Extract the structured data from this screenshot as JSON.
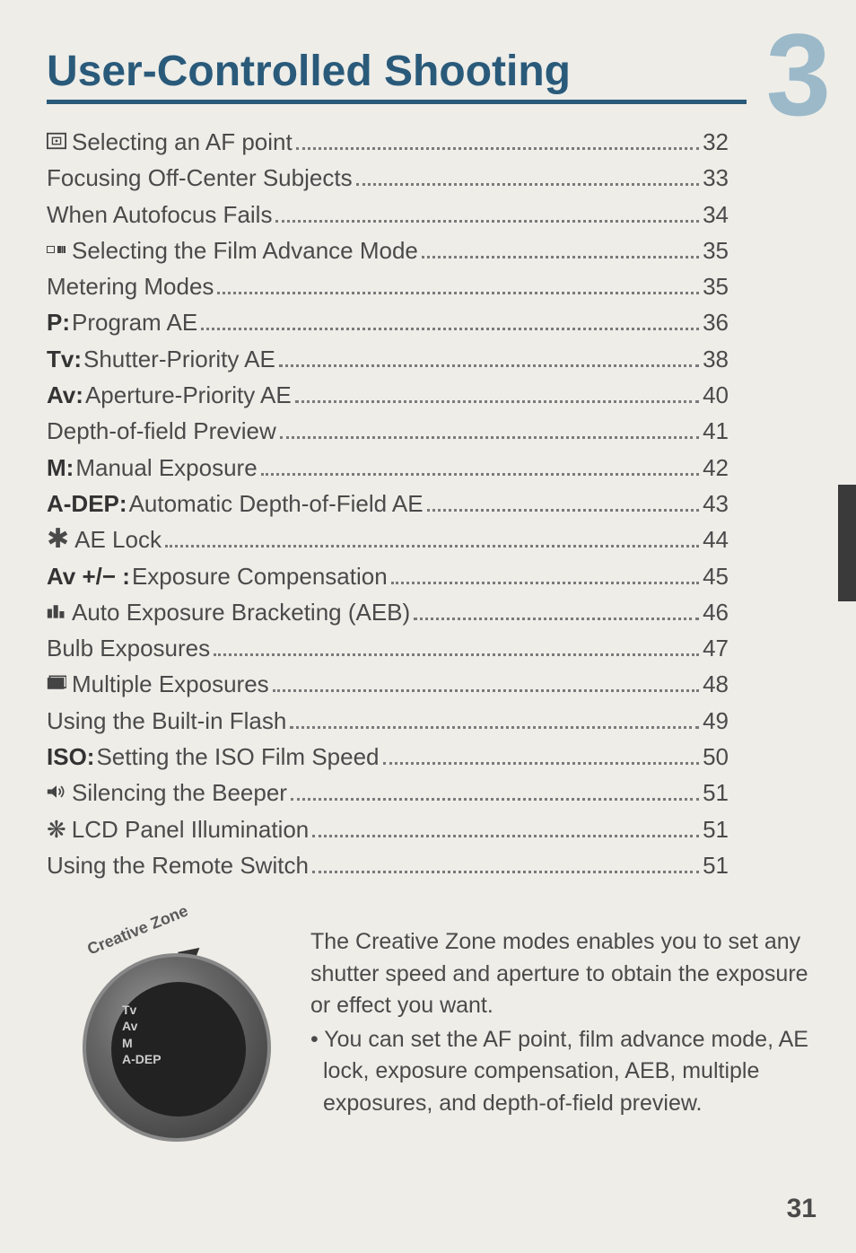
{
  "chapter_number": "3",
  "title": "User-Controlled Shooting",
  "page_number": "31",
  "side_tab_color": "#3a3a3a",
  "title_color": "#2a5a7a",
  "toc": [
    {
      "icon": "af-point-icon",
      "prefix": "",
      "label": "Selecting an AF point",
      "page": "32"
    },
    {
      "icon": "",
      "prefix": "",
      "label": "Focusing Off-Center Subjects",
      "page": "33"
    },
    {
      "icon": "",
      "prefix": "",
      "label": "When Autofocus Fails",
      "page": "34"
    },
    {
      "icon": "film-advance-icon",
      "prefix": "",
      "label": "Selecting the Film Advance Mode",
      "page": "35"
    },
    {
      "icon": "",
      "prefix": "",
      "label": "Metering Modes",
      "page": "35"
    },
    {
      "icon": "",
      "prefix": "P:",
      "label": "Program AE",
      "page": "36"
    },
    {
      "icon": "",
      "prefix": "Tv:",
      "label": "Shutter-Priority AE",
      "page": "38"
    },
    {
      "icon": "",
      "prefix": "Av:",
      "label": "Aperture-Priority AE",
      "page": "40"
    },
    {
      "icon": "",
      "prefix": "",
      "label": "Depth-of-field Preview",
      "page": "41"
    },
    {
      "icon": "",
      "prefix": "M:",
      "label": "Manual Exposure",
      "page": "42"
    },
    {
      "icon": "",
      "prefix": "A-DEP:",
      "label": "Automatic Depth-of-Field AE",
      "page": "43"
    },
    {
      "icon": "star-icon",
      "prefix": "",
      "label": "AE Lock",
      "page": "44"
    },
    {
      "icon": "",
      "prefix": "Av +/− :",
      "label": "Exposure Compensation",
      "page": "45"
    },
    {
      "icon": "aeb-icon",
      "prefix": "",
      "label": "Auto Exposure Bracketing (AEB)",
      "page": "46"
    },
    {
      "icon": "",
      "prefix": "",
      "label": "Bulb Exposures",
      "page": "47"
    },
    {
      "icon": "multi-exposure-icon",
      "prefix": "",
      "label": "Multiple Exposures",
      "page": "48"
    },
    {
      "icon": "",
      "prefix": "",
      "label": "Using the Built-in Flash",
      "page": "49"
    },
    {
      "icon": "",
      "prefix": "ISO:",
      "label": "Setting the ISO Film Speed",
      "page": "50"
    },
    {
      "icon": "beeper-icon",
      "prefix": "",
      "label": "Silencing the Beeper",
      "page": "51"
    },
    {
      "icon": "illumination-icon",
      "prefix": "",
      "label": "LCD Panel Illumination",
      "page": "51"
    },
    {
      "icon": "",
      "prefix": "",
      "label": "Using the Remote Switch",
      "page": "51"
    }
  ],
  "dial": {
    "zone_label": "Creative Zone",
    "marks": "Tv\nAv\nM\nA-DEP"
  },
  "intro": {
    "p1": "The Creative Zone modes enables you to set any shutter speed and aperture to obtain the exposure or effect you want.",
    "p2": "• You can set the AF point, film advance mode, AE lock, exposure compensation, AEB, multiple exposures, and depth-of-field preview."
  }
}
